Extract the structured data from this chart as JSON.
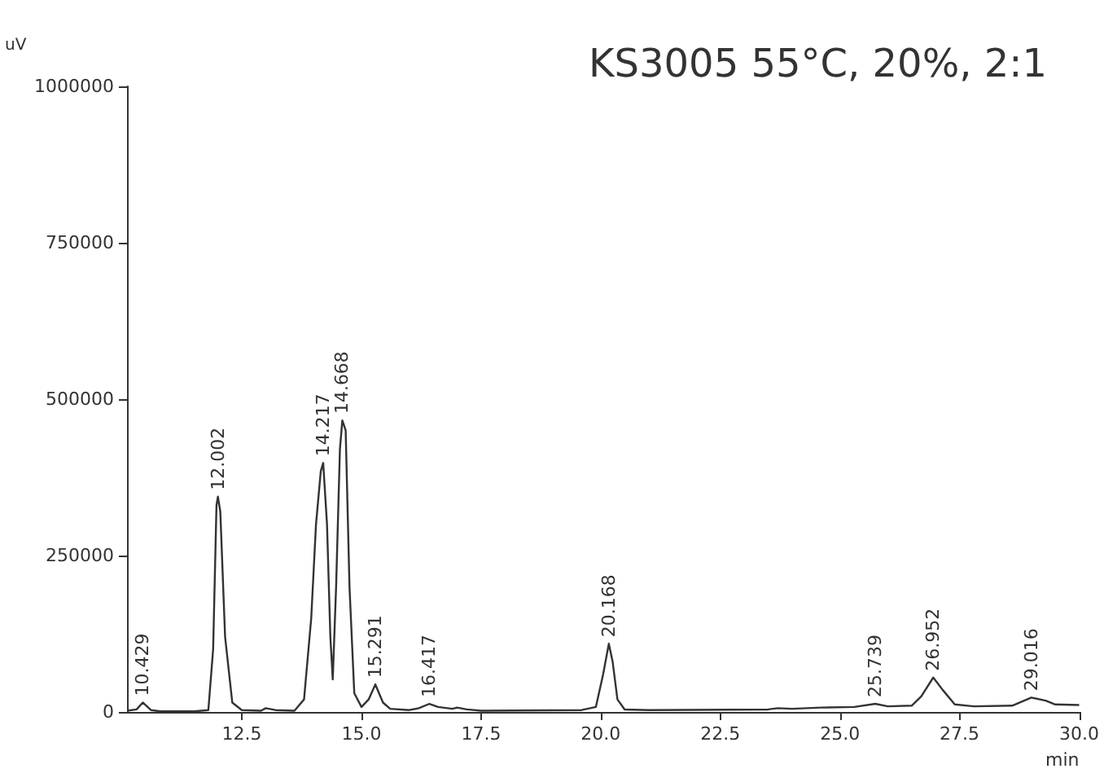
{
  "chart_data": {
    "type": "line",
    "title": "KS3005 55°C, 20%, 2:1",
    "xlabel": "min",
    "ylabel": "uV",
    "series": [
      {
        "color": "#333333",
        "x": [
          10.1,
          10.3,
          10.43,
          10.6,
          10.8,
          11.5,
          11.8,
          11.9,
          11.97,
          12.0,
          12.05,
          12.15,
          12.3,
          12.5,
          12.9,
          13.0,
          13.2,
          13.6,
          13.8,
          13.95,
          14.05,
          14.15,
          14.2,
          14.28,
          14.35,
          14.4,
          14.47,
          14.55,
          14.6,
          14.67,
          14.75,
          14.85,
          15.0,
          15.15,
          15.29,
          15.45,
          15.6,
          16.0,
          16.2,
          16.42,
          16.6,
          16.9,
          17.0,
          17.2,
          17.5,
          19.6,
          19.9,
          20.05,
          20.17,
          20.25,
          20.35,
          20.5,
          21.0,
          23.5,
          23.7,
          24.0,
          24.6,
          25.3,
          25.74,
          26.0,
          26.5,
          26.7,
          26.95,
          27.15,
          27.4,
          27.8,
          28.6,
          29.0,
          29.3,
          29.5,
          30.0
        ],
        "values": [
          2000,
          4000,
          15000,
          3000,
          1000,
          1000,
          3000,
          100000,
          330000,
          344000,
          320000,
          120000,
          15000,
          3000,
          2000,
          6000,
          3000,
          2000,
          20000,
          150000,
          300000,
          385000,
          398000,
          300000,
          120000,
          52000,
          200000,
          420000,
          466000,
          450000,
          200000,
          30000,
          8000,
          20000,
          44000,
          15000,
          5000,
          3000,
          6000,
          13000,
          8000,
          5000,
          7000,
          4000,
          2000,
          3000,
          8000,
          60000,
          109000,
          80000,
          20000,
          4000,
          3000,
          4000,
          6000,
          5000,
          7000,
          8000,
          13000,
          9000,
          10000,
          25000,
          55000,
          35000,
          12000,
          9000,
          10000,
          23000,
          18000,
          12000,
          11000
        ]
      }
    ],
    "annotations": [
      {
        "text": "10.429",
        "x": 10.43,
        "y": 15000
      },
      {
        "text": "12.002",
        "x": 12.0,
        "y": 344000
      },
      {
        "text": "14.217",
        "x": 14.2,
        "y": 398000
      },
      {
        "text": "14.668",
        "x": 14.6,
        "y": 466000
      },
      {
        "text": "15.291",
        "x": 15.29,
        "y": 44000
      },
      {
        "text": "16.417",
        "x": 16.42,
        "y": 13000
      },
      {
        "text": "20.168",
        "x": 20.17,
        "y": 109000
      },
      {
        "text": "25.739",
        "x": 25.74,
        "y": 13000
      },
      {
        "text": "26.952",
        "x": 26.95,
        "y": 55000
      },
      {
        "text": "29.016",
        "x": 29.0,
        "y": 23000
      }
    ],
    "xlim": [
      10.1,
      30.0
    ],
    "xticks": [
      12.5,
      {
        "value": 15,
        "label": "15.0"
      },
      17.5,
      {
        "value": 20,
        "label": "20.0"
      },
      22.5,
      {
        "value": 25,
        "label": "25.0"
      },
      27.5,
      {
        "value": 30,
        "label": "30.0"
      }
    ],
    "ylim": [
      0,
      1000000
    ],
    "yticks": [
      0,
      250000,
      500000,
      750000,
      1000000
    ],
    "grid": false,
    "marker": "none",
    "line_style": "solid"
  }
}
